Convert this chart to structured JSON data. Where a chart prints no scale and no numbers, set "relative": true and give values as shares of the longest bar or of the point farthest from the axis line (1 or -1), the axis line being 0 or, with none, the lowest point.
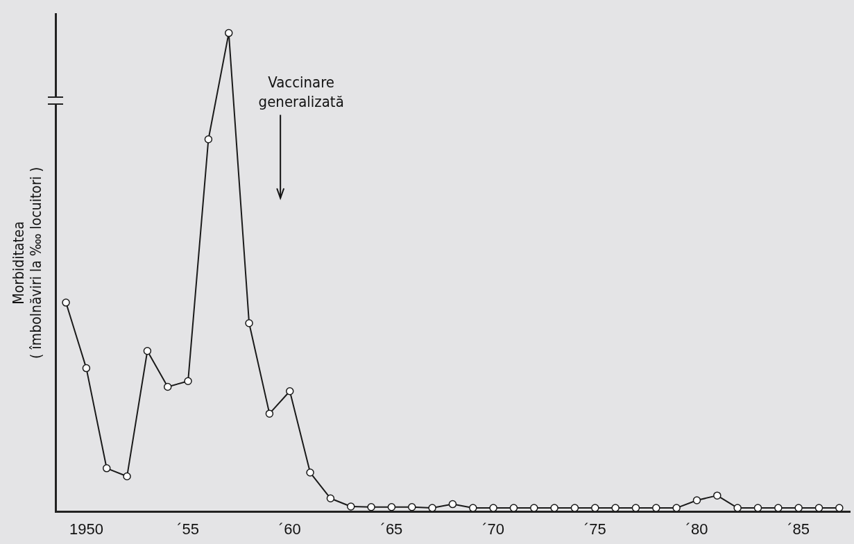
{
  "chart_data": {
    "type": "line",
    "relative": true,
    "ylabel": "Morbiditatea\n( îmbolnăviri la ‱ locuitori )",
    "categories": [
      null,
      "1950",
      null,
      null,
      null,
      null,
      "´55",
      null,
      null,
      null,
      null,
      "´60",
      null,
      null,
      null,
      null,
      "´65",
      null,
      null,
      null,
      null,
      "´70",
      null,
      null,
      null,
      null,
      "´75",
      null,
      null,
      null,
      null,
      "´80",
      null,
      null,
      null,
      null,
      "´85",
      null,
      null
    ],
    "series": [
      {
        "color": "#1a1a1a",
        "values": [
          0.437,
          0.3,
          0.091,
          0.074,
          0.336,
          0.261,
          0.273,
          0.778,
          1,
          0.394,
          0.205,
          0.252,
          0.082,
          0.028,
          0.011,
          0.01,
          0.01,
          0.01,
          0.008,
          0.016,
          0.008,
          0.008,
          0.008,
          0.008,
          0.008,
          0.008,
          0.008,
          0.008,
          0.008,
          0.008,
          0.008,
          0.024,
          0.034,
          0.008,
          0.008,
          0.008,
          0.008,
          0.008,
          0.008
        ]
      }
    ],
    "annotations": [
      "Vaccinare\ngeneralizată"
    ],
    "marker": "circle",
    "line_style": "solid",
    "grid": false,
    "legend": false
  }
}
